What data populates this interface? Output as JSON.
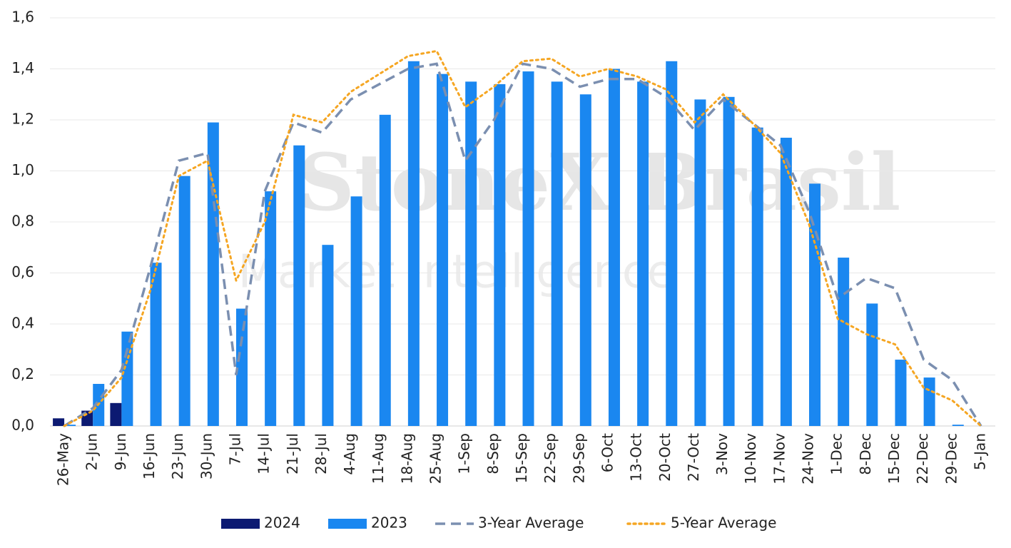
{
  "chart_data": {
    "type": "bar",
    "watermark": [
      "StoneX Brasil",
      "Market Intelligence"
    ],
    "categories": [
      "26-May",
      "2-Jun",
      "9-Jun",
      "16-Jun",
      "23-Jun",
      "30-Jun",
      "7-Jul",
      "14-Jul",
      "21-Jul",
      "28-Jul",
      "4-Aug",
      "11-Aug",
      "18-Aug",
      "25-Aug",
      "1-Sep",
      "8-Sep",
      "15-Sep",
      "22-Sep",
      "29-Sep",
      "6-Oct",
      "13-Oct",
      "20-Oct",
      "27-Oct",
      "3-Nov",
      "10-Nov",
      "17-Nov",
      "24-Nov",
      "1-Dec",
      "8-Dec",
      "15-Dec",
      "22-Dec",
      "29-Dec",
      "5-Jan"
    ],
    "series": [
      {
        "name": "2024",
        "kind": "bar",
        "color": "#0c1a72",
        "values": [
          0.03,
          0.06,
          0.09,
          null,
          null,
          null,
          null,
          null,
          null,
          null,
          null,
          null,
          null,
          null,
          null,
          null,
          null,
          null,
          null,
          null,
          null,
          null,
          null,
          null,
          null,
          null,
          null,
          null,
          null,
          null,
          null,
          null,
          null
        ]
      },
      {
        "name": "2023",
        "kind": "bar",
        "color": "#1a87f0",
        "values": [
          0.005,
          0.165,
          0.37,
          0.64,
          0.98,
          1.19,
          0.46,
          0.92,
          1.1,
          0.71,
          0.9,
          1.22,
          1.43,
          1.38,
          1.35,
          1.34,
          1.39,
          1.35,
          1.3,
          1.4,
          1.35,
          1.43,
          1.28,
          1.29,
          1.17,
          1.13,
          0.95,
          0.66,
          0.48,
          0.26,
          0.19,
          0.005,
          null
        ]
      },
      {
        "name": "3-Year Average",
        "kind": "line",
        "dash": "dashed",
        "color": "#7b8fb0",
        "values": [
          0.0,
          0.07,
          0.22,
          0.62,
          1.04,
          1.07,
          0.2,
          0.92,
          1.19,
          1.15,
          1.28,
          1.34,
          1.4,
          1.42,
          1.04,
          1.2,
          1.42,
          1.4,
          1.33,
          1.36,
          1.36,
          1.29,
          1.16,
          1.28,
          1.19,
          1.1,
          0.84,
          0.5,
          0.58,
          0.54,
          0.26,
          0.18,
          0.0
        ]
      },
      {
        "name": "5-Year Average",
        "kind": "line",
        "dash": "dotted",
        "color": "#f5a623",
        "values": [
          0.0,
          0.06,
          0.19,
          0.53,
          0.98,
          1.04,
          0.57,
          0.8,
          1.22,
          1.19,
          1.31,
          1.38,
          1.45,
          1.47,
          1.25,
          1.33,
          1.43,
          1.44,
          1.37,
          1.4,
          1.37,
          1.32,
          1.19,
          1.3,
          1.19,
          1.07,
          0.79,
          0.42,
          0.36,
          0.32,
          0.15,
          0.1,
          0.0
        ]
      }
    ],
    "ylim": [
      0,
      1.6
    ],
    "yticks": [
      {
        "value": 0,
        "label": "0,0"
      },
      {
        "value": 0.2,
        "label": "0,2"
      },
      {
        "value": 0.4,
        "label": "0,4"
      },
      {
        "value": 0.6,
        "label": "0,6"
      },
      {
        "value": 0.8,
        "label": "0,8"
      },
      {
        "value": 1.0,
        "label": "1,0"
      },
      {
        "value": 1.2,
        "label": "1,2"
      },
      {
        "value": 1.4,
        "label": "1,4"
      },
      {
        "value": 1.6,
        "label": "1,6"
      }
    ],
    "grid": true,
    "legend": "bottom"
  }
}
